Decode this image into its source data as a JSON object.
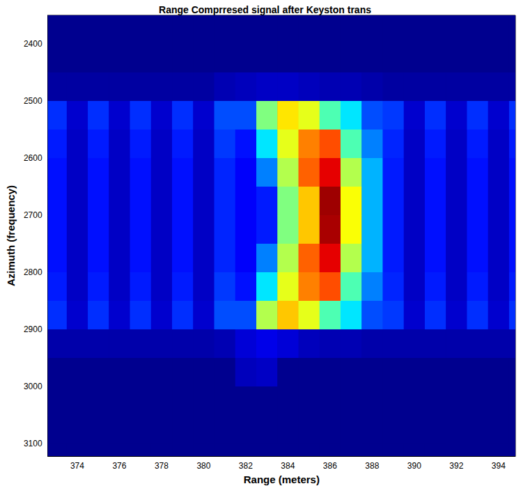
{
  "chart_data": {
    "type": "heatmap",
    "title": "Range Comprresed signal after Keyston trans",
    "x_label": "Range (meters)",
    "y_label": "Azimuth (frequency)",
    "x": [
      373,
      374,
      375,
      376,
      377,
      378,
      379,
      380,
      381,
      382,
      383,
      384,
      385,
      386,
      387,
      388,
      389,
      390,
      391,
      392,
      393,
      394,
      395
    ],
    "y": [
      2375,
      2425,
      2475,
      2525,
      2575,
      2625,
      2675,
      2725,
      2775,
      2825,
      2875,
      2925,
      2975,
      3025,
      3075,
      3125
    ],
    "values": [
      [
        0,
        0,
        0,
        0,
        0,
        0,
        0,
        0,
        0,
        0,
        0,
        0,
        0,
        0,
        0,
        0,
        0,
        0,
        0,
        0,
        0,
        0,
        0
      ],
      [
        0,
        0,
        0,
        0,
        0,
        0,
        0,
        0,
        0,
        0,
        0,
        0,
        0,
        0,
        0,
        0,
        0,
        0,
        0,
        0,
        0,
        0,
        0
      ],
      [
        0.02,
        0.02,
        0.02,
        0.02,
        0.02,
        0.02,
        0.02,
        0.02,
        0.04,
        0.05,
        0.06,
        0.06,
        0.05,
        0.04,
        0.04,
        0.03,
        0.02,
        0.02,
        0.02,
        0.02,
        0.02,
        0.02,
        0.02
      ],
      [
        0.17,
        0.07,
        0.17,
        0.07,
        0.17,
        0.07,
        0.17,
        0.07,
        0.2,
        0.2,
        0.5,
        0.65,
        0.6,
        0.45,
        0.35,
        0.2,
        0.18,
        0.07,
        0.17,
        0.07,
        0.17,
        0.07,
        0.17
      ],
      [
        0.15,
        0.06,
        0.15,
        0.06,
        0.15,
        0.06,
        0.15,
        0.06,
        0.18,
        0.14,
        0.35,
        0.6,
        0.75,
        0.8,
        0.45,
        0.25,
        0.16,
        0.06,
        0.15,
        0.06,
        0.15,
        0.06,
        0.15
      ],
      [
        0.14,
        0.06,
        0.14,
        0.06,
        0.14,
        0.06,
        0.14,
        0.06,
        0.16,
        0.12,
        0.25,
        0.55,
        0.78,
        0.9,
        0.55,
        0.3,
        0.15,
        0.06,
        0.14,
        0.06,
        0.14,
        0.06,
        0.14
      ],
      [
        0.14,
        0.06,
        0.14,
        0.06,
        0.14,
        0.06,
        0.14,
        0.06,
        0.16,
        0.12,
        0.15,
        0.5,
        0.68,
        0.97,
        0.62,
        0.3,
        0.15,
        0.06,
        0.14,
        0.06,
        0.14,
        0.06,
        0.14
      ],
      [
        0.14,
        0.06,
        0.14,
        0.06,
        0.14,
        0.06,
        0.14,
        0.06,
        0.16,
        0.12,
        0.15,
        0.5,
        0.68,
        0.96,
        0.62,
        0.3,
        0.15,
        0.06,
        0.14,
        0.06,
        0.14,
        0.06,
        0.14
      ],
      [
        0.14,
        0.06,
        0.14,
        0.06,
        0.14,
        0.06,
        0.14,
        0.06,
        0.16,
        0.12,
        0.25,
        0.55,
        0.78,
        0.9,
        0.55,
        0.3,
        0.15,
        0.06,
        0.14,
        0.06,
        0.14,
        0.06,
        0.14
      ],
      [
        0.15,
        0.06,
        0.15,
        0.06,
        0.15,
        0.06,
        0.15,
        0.06,
        0.18,
        0.14,
        0.35,
        0.6,
        0.75,
        0.8,
        0.45,
        0.25,
        0.16,
        0.06,
        0.15,
        0.06,
        0.15,
        0.06,
        0.15
      ],
      [
        0.17,
        0.07,
        0.17,
        0.07,
        0.17,
        0.07,
        0.17,
        0.07,
        0.2,
        0.2,
        0.55,
        0.68,
        0.6,
        0.45,
        0.35,
        0.2,
        0.18,
        0.07,
        0.17,
        0.07,
        0.17,
        0.07,
        0.17
      ],
      [
        0.03,
        0.03,
        0.03,
        0.03,
        0.03,
        0.03,
        0.03,
        0.03,
        0.04,
        0.08,
        0.1,
        0.08,
        0.05,
        0.04,
        0.04,
        0.03,
        0.03,
        0.03,
        0.03,
        0.03,
        0.03,
        0.03,
        0.03
      ],
      [
        0,
        0,
        0,
        0,
        0,
        0,
        0,
        0,
        0,
        0.05,
        0.06,
        0,
        0,
        0,
        0,
        0,
        0,
        0,
        0,
        0,
        0,
        0,
        0
      ],
      [
        0,
        0,
        0,
        0,
        0,
        0,
        0,
        0,
        0,
        0,
        0,
        0,
        0,
        0,
        0,
        0,
        0,
        0,
        0,
        0,
        0,
        0,
        0
      ],
      [
        0,
        0,
        0,
        0,
        0,
        0,
        0,
        0,
        0,
        0,
        0,
        0,
        0,
        0,
        0,
        0,
        0,
        0,
        0,
        0,
        0,
        0,
        0
      ],
      [
        0,
        0,
        0,
        0,
        0,
        0,
        0,
        0,
        0,
        0,
        0,
        0,
        0,
        0,
        0,
        0,
        0,
        0,
        0,
        0,
        0,
        0,
        0
      ]
    ],
    "color_range": [
      0,
      1
    ],
    "xlim": [
      372.6,
      394.8
    ],
    "ylim": [
      2350,
      3122
    ],
    "xticks": [
      374,
      376,
      378,
      380,
      382,
      384,
      386,
      388,
      390,
      392,
      394
    ],
    "yticks": [
      2400,
      2500,
      2600,
      2700,
      2800,
      2900,
      3000,
      3100
    ],
    "grid": false
  }
}
